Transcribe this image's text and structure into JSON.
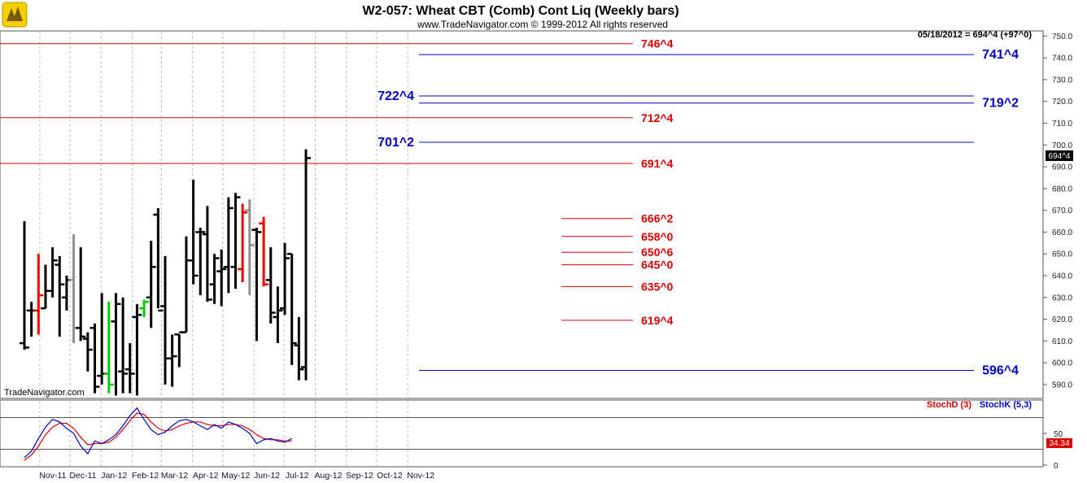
{
  "header": {
    "title": "W2-057:  Wheat CBT (Comb) Cont Liq  (Weekly bars)",
    "subtitle": "www.TradeNavigator.com © 1999-2012 All rights reserved",
    "last_quote": "05/18/2012 = 694^4 (+97^0)",
    "watermark": "TradeNavigator.com"
  },
  "price_badge": "694^4",
  "colors": {
    "red": "#dd0000",
    "blue": "#0000cc",
    "bar_black": "#000000",
    "bar_red": "#ee0000",
    "bar_gray": "#909090",
    "bar_green": "#00cc00"
  },
  "chart_data": {
    "type": "ohlc",
    "ylim": [
      584,
      752
    ],
    "yticks": [
      590,
      600,
      610,
      620,
      630,
      640,
      650,
      660,
      670,
      680,
      690,
      700,
      710,
      720,
      730,
      740,
      750
    ],
    "ytick_labels": [
      "590.0",
      "600.0",
      "610.0",
      "620.0",
      "630.0",
      "640.0",
      "650.0",
      "660.0",
      "670.0",
      "680.0",
      "690.0",
      "700.0",
      "710.0",
      "720.0",
      "730.0",
      "740.0",
      "750.0"
    ],
    "x_labels": [
      "Nov-11",
      "Dec-11",
      "Jan-12",
      "Feb-12",
      "Mar-12",
      "Apr-12",
      "May-12",
      "Jun-12",
      "Jul-12",
      "Aug-12",
      "Sep-12",
      "Oct-12",
      "Nov-12"
    ],
    "bars": [
      {
        "date": "2011-10-07",
        "open": 609,
        "high": 665,
        "low": 606,
        "close": 607,
        "color": "black"
      },
      {
        "date": "2011-10-14",
        "open": 624,
        "high": 628,
        "low": 612,
        "close": 624,
        "color": "black"
      },
      {
        "date": "2011-10-21",
        "open": 624,
        "high": 650,
        "low": 613,
        "close": 631,
        "color": "red"
      },
      {
        "date": "2011-10-28",
        "open": 625,
        "high": 645,
        "low": 625,
        "close": 633,
        "color": "black"
      },
      {
        "date": "2011-11-04",
        "open": 633,
        "high": 653,
        "low": 630,
        "close": 647,
        "color": "black"
      },
      {
        "date": "2011-11-11",
        "open": 645,
        "high": 649,
        "low": 612,
        "close": 636,
        "color": "black"
      },
      {
        "date": "2011-11-18",
        "open": 630,
        "high": 640,
        "low": 624,
        "close": 638,
        "color": "black"
      },
      {
        "date": "2011-11-25",
        "open": 638,
        "high": 659,
        "low": 609,
        "close": 616,
        "color": "gray"
      },
      {
        "date": "2011-12-02",
        "open": 616,
        "high": 653,
        "low": 610,
        "close": 612,
        "color": "black"
      },
      {
        "date": "2011-12-09",
        "open": 611,
        "high": 614,
        "low": 596,
        "close": 606,
        "color": "black"
      },
      {
        "date": "2011-12-16",
        "open": 616,
        "high": 618,
        "low": 586,
        "close": 589,
        "color": "black"
      },
      {
        "date": "2011-12-23",
        "open": 594,
        "high": 632,
        "low": 590,
        "close": 595,
        "color": "black"
      },
      {
        "date": "2011-12-30",
        "open": 595,
        "high": 628,
        "low": 586,
        "close": 590,
        "color": "green"
      },
      {
        "date": "2012-01-06",
        "open": 619,
        "high": 632,
        "low": 585,
        "close": 627,
        "color": "black"
      },
      {
        "date": "2012-01-13",
        "open": 596,
        "high": 630,
        "low": 586,
        "close": 595,
        "color": "black"
      },
      {
        "date": "2012-01-20",
        "open": 597,
        "high": 609,
        "low": 586,
        "close": 595,
        "color": "black"
      },
      {
        "date": "2012-01-27",
        "open": 621,
        "high": 627,
        "low": 585,
        "close": 622,
        "color": "black"
      },
      {
        "date": "2012-02-03",
        "open": 625,
        "high": 629,
        "low": 621,
        "close": 628,
        "color": "green"
      },
      {
        "date": "2012-02-10",
        "open": 630,
        "high": 656,
        "low": 616,
        "close": 644,
        "color": "black"
      },
      {
        "date": "2012-02-17",
        "open": 668,
        "high": 671,
        "low": 625,
        "close": 624,
        "color": "black"
      },
      {
        "date": "2012-02-24",
        "open": 626,
        "high": 649,
        "low": 590,
        "close": 602,
        "color": "black"
      },
      {
        "date": "2012-03-02",
        "open": 602,
        "high": 613,
        "low": 589,
        "close": 603,
        "color": "black"
      },
      {
        "date": "2012-03-09",
        "open": 613,
        "high": 613,
        "low": 598,
        "close": 614,
        "color": "black"
      },
      {
        "date": "2012-03-16",
        "open": 614,
        "high": 658,
        "low": 614,
        "close": 647,
        "color": "black"
      },
      {
        "date": "2012-03-23",
        "open": 647,
        "high": 684,
        "low": 636,
        "close": 640,
        "color": "black"
      },
      {
        "date": "2012-03-30",
        "open": 660,
        "high": 662,
        "low": 631,
        "close": 660,
        "color": "black"
      },
      {
        "date": "2012-04-06",
        "open": 659,
        "high": 672,
        "low": 628,
        "close": 629,
        "color": "black"
      },
      {
        "date": "2012-04-13",
        "open": 636,
        "high": 650,
        "low": 627,
        "close": 648,
        "color": "black"
      },
      {
        "date": "2012-04-20",
        "open": 642,
        "high": 652,
        "low": 626,
        "close": 643,
        "color": "black"
      },
      {
        "date": "2012-04-27",
        "open": 644,
        "high": 676,
        "low": 632,
        "close": 671,
        "color": "black"
      },
      {
        "date": "2012-05-04",
        "open": 644,
        "high": 678,
        "low": 634,
        "close": 676,
        "color": "black"
      },
      {
        "date": "2012-05-11",
        "open": 643,
        "high": 673,
        "low": 637,
        "close": 669,
        "color": "red"
      },
      {
        "date": "2012-05-18",
        "open": 670,
        "high": 675,
        "low": 631,
        "close": 654,
        "color": "gray"
      },
      {
        "date": "2012-05-25",
        "open": 661,
        "high": 662,
        "low": 610,
        "close": 660,
        "color": "black"
      },
      {
        "date": "2012-06-01",
        "open": 664,
        "high": 667,
        "low": 635,
        "close": 636,
        "color": "red"
      },
      {
        "date": "2012-06-08",
        "open": 638,
        "high": 653,
        "low": 618,
        "close": 623,
        "color": "black"
      },
      {
        "date": "2012-06-15",
        "open": 621,
        "high": 635,
        "low": 609,
        "close": 624,
        "color": "black"
      },
      {
        "date": "2012-06-22",
        "open": 625,
        "high": 655,
        "low": 622,
        "close": 648,
        "color": "black"
      },
      {
        "date": "2012-06-29",
        "open": 650,
        "high": 650,
        "low": 599,
        "close": 609,
        "color": "black"
      },
      {
        "date": "2012-07-06",
        "open": 608,
        "high": 621,
        "low": 592,
        "close": 597,
        "color": "black"
      },
      {
        "date": "2012-07-13",
        "open": 598,
        "high": 698,
        "low": 592,
        "close": 694,
        "color": "black"
      }
    ],
    "levels": [
      {
        "label": "746^4",
        "value": 746.5,
        "color": "red",
        "side": "left"
      },
      {
        "label": "741^4",
        "value": 741.5,
        "color": "blue",
        "side": "right"
      },
      {
        "label": "722^4",
        "value": 722.5,
        "color": "blue",
        "side": "left"
      },
      {
        "label": "719^2",
        "value": 719.25,
        "color": "blue",
        "side": "right"
      },
      {
        "label": "712^4",
        "value": 712.5,
        "color": "red",
        "side": "left"
      },
      {
        "label": "701^2",
        "value": 701.25,
        "color": "blue",
        "side": "left"
      },
      {
        "label": "691^4",
        "value": 691.5,
        "color": "red",
        "side": "left"
      },
      {
        "label": "666^2",
        "value": 666.25,
        "color": "red",
        "side": "right"
      },
      {
        "label": "658^0",
        "value": 658,
        "color": "red",
        "side": "right"
      },
      {
        "label": "650^6",
        "value": 650.75,
        "color": "red",
        "side": "right"
      },
      {
        "label": "645^0",
        "value": 645,
        "color": "red",
        "side": "right"
      },
      {
        "label": "635^0",
        "value": 635,
        "color": "red",
        "side": "right"
      },
      {
        "label": "619^4",
        "value": 619.5,
        "color": "red",
        "side": "right"
      },
      {
        "label": "596^4",
        "value": 596.5,
        "color": "blue",
        "side": "right"
      }
    ],
    "stochastic": {
      "legend_d": "StochD (3)",
      "legend_k": "StochK (5,3)",
      "ylim": [
        0,
        100
      ],
      "yticks": [
        0,
        50
      ],
      "ytick_labels": [
        "0",
        "50"
      ],
      "badge": "34.34",
      "stoch_k": [
        12,
        22,
        42,
        60,
        72,
        68,
        58,
        50,
        30,
        18,
        38,
        34,
        40,
        48,
        62,
        78,
        90,
        72,
        56,
        48,
        52,
        62,
        70,
        72,
        68,
        62,
        56,
        64,
        58,
        68,
        64,
        58,
        50,
        34,
        40,
        42,
        38,
        36,
        42
      ],
      "stoch_d": [
        8,
        16,
        30,
        48,
        60,
        66,
        66,
        58,
        44,
        32,
        34,
        34,
        36,
        44,
        56,
        70,
        82,
        80,
        68,
        58,
        54,
        56,
        62,
        66,
        68,
        68,
        64,
        62,
        62,
        64,
        64,
        62,
        56,
        48,
        42,
        40,
        40,
        38,
        38
      ]
    }
  }
}
